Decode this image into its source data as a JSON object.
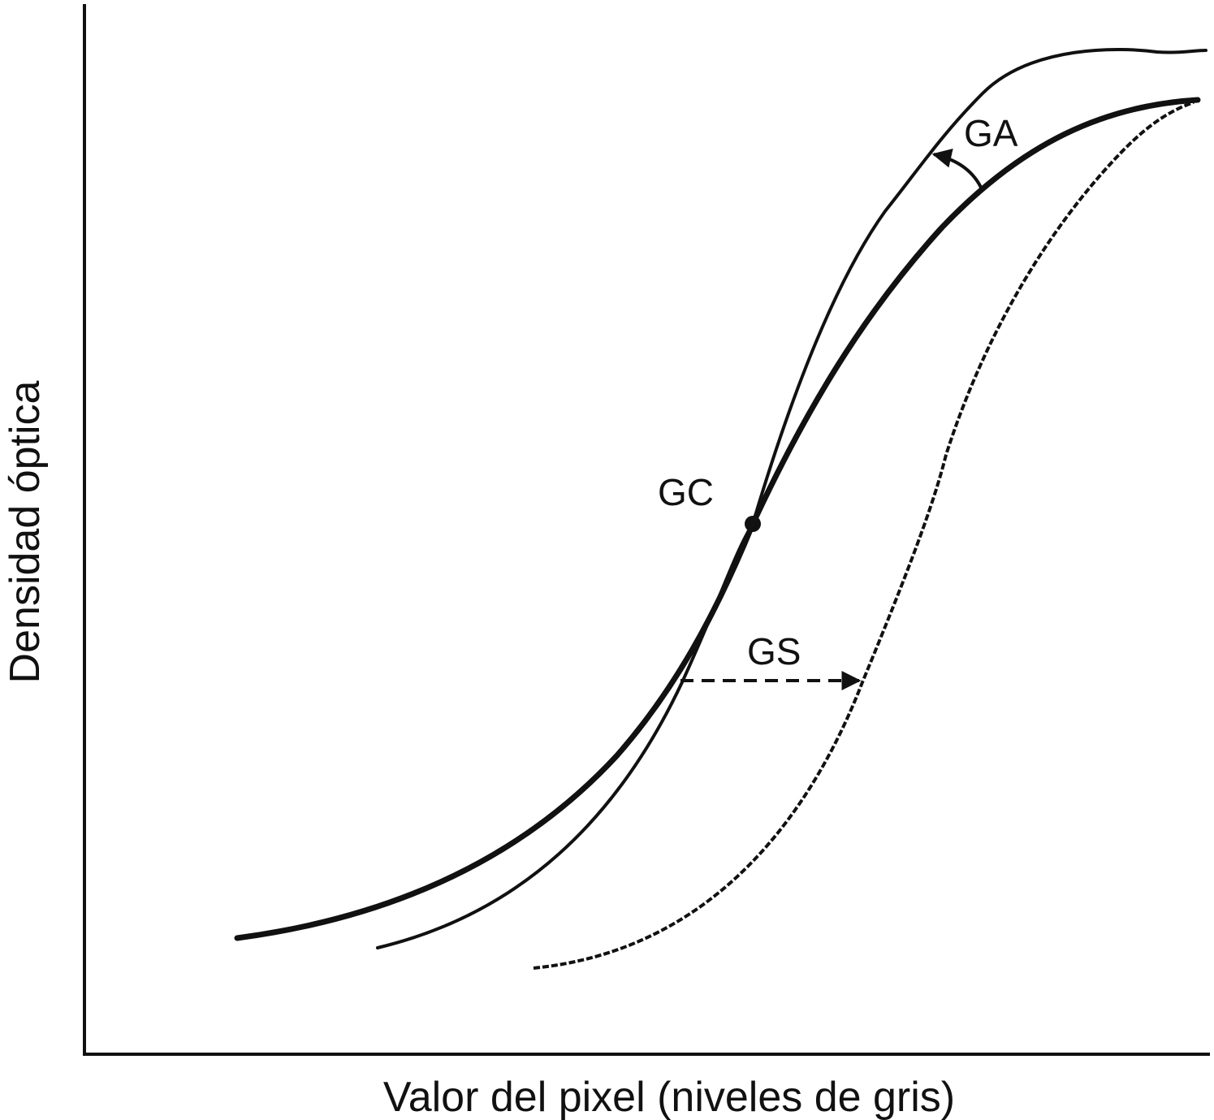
{
  "diagram": {
    "x_axis_label": "Valor del pixel (niveles de gris)",
    "y_axis_label": "Densidad óptica",
    "labels": {
      "ga": "GA",
      "gc": "GC",
      "gs": "GS"
    },
    "colors": {
      "line": "#111111",
      "background": "#ffffff"
    }
  }
}
